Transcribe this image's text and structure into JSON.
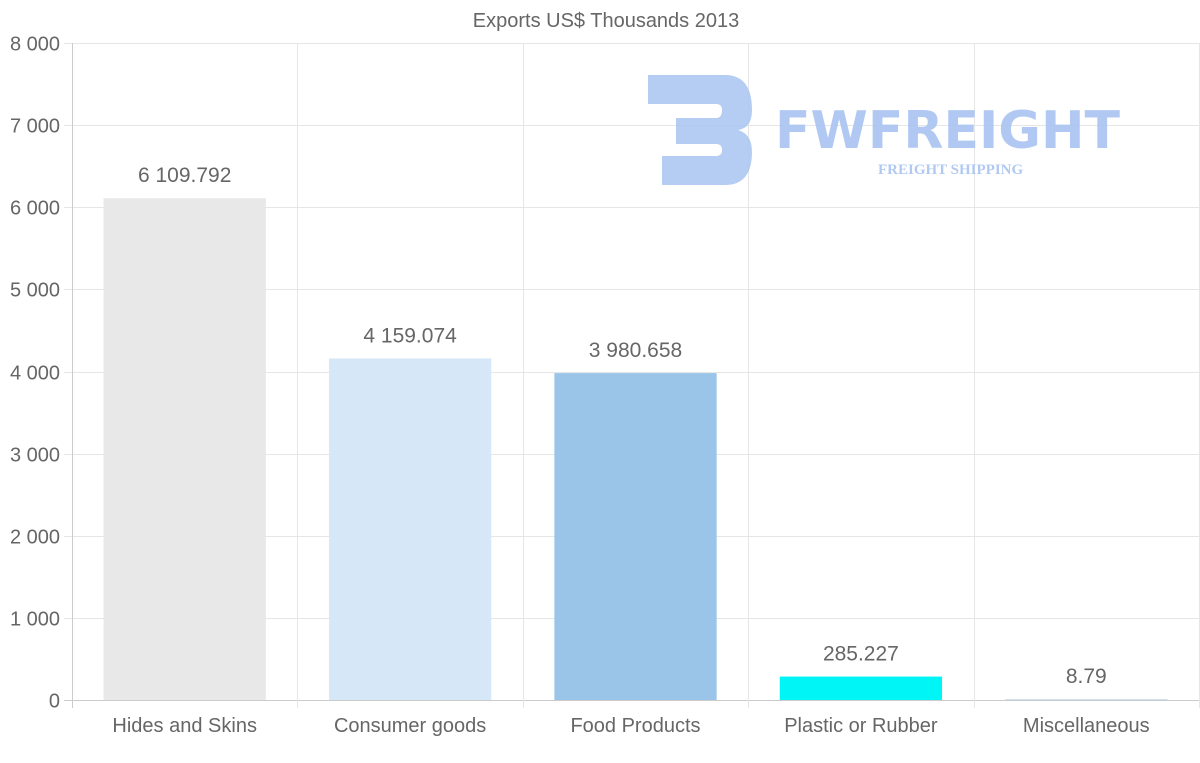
{
  "chart_data": {
    "type": "bar",
    "title": "Exports US$ Thousands 2013",
    "xlabel": "",
    "ylabel": "",
    "categories": [
      "Hides and Skins",
      "Consumer goods",
      "Food Products",
      "Plastic or Rubber",
      "Miscellaneous"
    ],
    "values": [
      6109.792,
      4159.074,
      3980.658,
      285.227,
      8.79
    ],
    "value_labels": [
      "6 109.792",
      "4 159.074",
      "3 980.658",
      "285.227",
      "8.79"
    ],
    "colors": [
      "#e8e8e8",
      "#d6e7f8",
      "#9bc5e8",
      "#00f6f6",
      "#cfe0ef"
    ],
    "ylim": [
      0,
      8000
    ],
    "yticks": [
      0,
      1000,
      2000,
      3000,
      4000,
      5000,
      6000,
      7000,
      8000
    ],
    "ytick_labels": [
      "0",
      "1 000",
      "2 000",
      "3 000",
      "4 000",
      "5 000",
      "6 000",
      "7 000",
      "8 000"
    ],
    "grid": true,
    "legend": "none"
  },
  "watermark": {
    "brand": "FWFREIGHT",
    "tagline": "FREIGHT SHIPPING"
  }
}
